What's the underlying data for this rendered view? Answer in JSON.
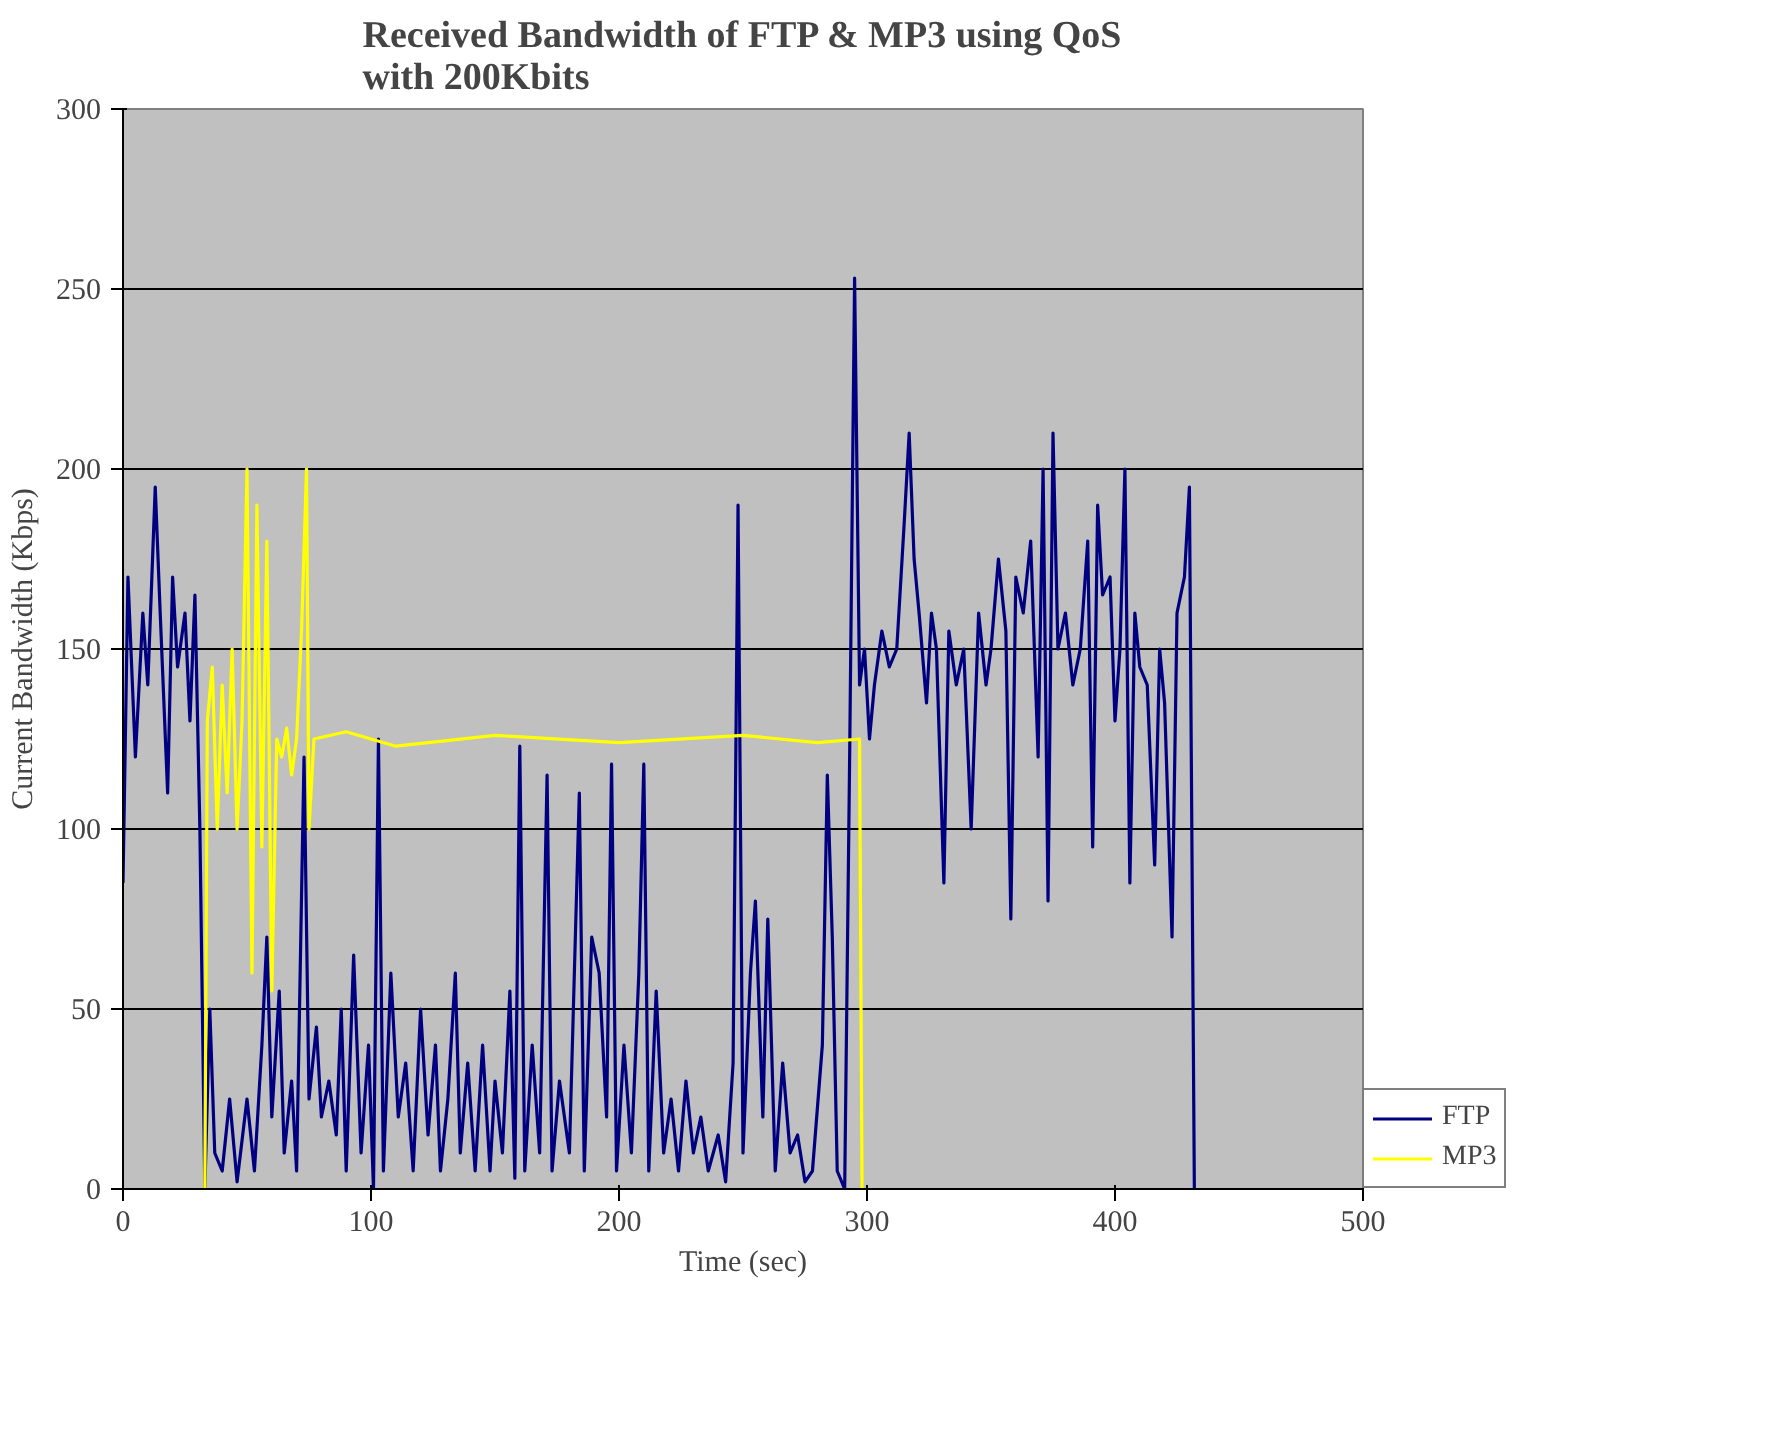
{
  "chart_data": {
    "type": "line",
    "title": "Received Bandwidth of FTP & MP3 using QoS\nwith 200Kbits",
    "xlabel": "Time (sec)",
    "ylabel": "Current Bandwidth (Kbps)",
    "xlim": [
      0,
      500
    ],
    "xticks": [
      0,
      100,
      200,
      300,
      400,
      500
    ],
    "ylim": [
      0,
      300
    ],
    "yticks": [
      0,
      50,
      100,
      150,
      200,
      250,
      300
    ],
    "grid": "y",
    "legend": "right",
    "line_style": "solid",
    "series": [
      {
        "name": "FTP",
        "color": "#000080",
        "x": [
          0,
          2,
          5,
          8,
          10,
          13,
          15,
          18,
          20,
          22,
          25,
          27,
          29,
          31,
          33,
          35,
          37,
          40,
          43,
          46,
          50,
          53,
          56,
          58,
          60,
          63,
          65,
          68,
          70,
          73,
          75,
          78,
          80,
          83,
          86,
          88,
          90,
          93,
          96,
          99,
          101,
          103,
          105,
          108,
          111,
          114,
          117,
          120,
          123,
          126,
          128,
          131,
          134,
          136,
          139,
          142,
          145,
          148,
          150,
          153,
          156,
          158,
          160,
          162,
          165,
          168,
          171,
          173,
          176,
          180,
          184,
          186,
          189,
          192,
          195,
          197,
          199,
          202,
          205,
          208,
          210,
          212,
          215,
          218,
          221,
          224,
          227,
          230,
          233,
          236,
          240,
          243,
          246,
          248,
          250,
          253,
          255,
          258,
          260,
          263,
          266,
          269,
          272,
          275,
          278,
          282,
          284,
          286,
          288,
          291,
          293,
          295,
          297,
          299,
          301,
          303,
          306,
          309,
          312,
          315,
          317,
          319,
          321,
          324,
          326,
          328,
          331,
          333,
          336,
          339,
          342,
          345,
          348,
          350,
          353,
          356,
          358,
          360,
          363,
          366,
          369,
          371,
          373,
          375,
          377,
          380,
          383,
          386,
          389,
          391,
          393,
          395,
          398,
          400,
          402,
          404,
          406,
          408,
          410,
          413,
          416,
          418,
          420,
          423,
          425,
          428,
          430,
          432
        ],
        "values": [
          85,
          170,
          120,
          160,
          140,
          195,
          160,
          110,
          170,
          145,
          160,
          130,
          165,
          100,
          0,
          50,
          10,
          5,
          25,
          2,
          25,
          5,
          40,
          70,
          20,
          55,
          10,
          30,
          5,
          120,
          25,
          45,
          20,
          30,
          15,
          50,
          5,
          65,
          10,
          40,
          0,
          125,
          5,
          60,
          20,
          35,
          5,
          50,
          15,
          40,
          5,
          25,
          60,
          10,
          35,
          5,
          40,
          5,
          30,
          10,
          55,
          3,
          123,
          5,
          40,
          10,
          115,
          5,
          30,
          10,
          110,
          5,
          70,
          60,
          20,
          118,
          5,
          40,
          10,
          60,
          118,
          5,
          55,
          10,
          25,
          5,
          30,
          10,
          20,
          5,
          15,
          2,
          35,
          190,
          10,
          60,
          80,
          20,
          75,
          5,
          35,
          10,
          15,
          2,
          5,
          40,
          115,
          70,
          5,
          0,
          120,
          253,
          140,
          150,
          125,
          140,
          155,
          145,
          150,
          185,
          210,
          175,
          160,
          135,
          160,
          150,
          85,
          155,
          140,
          150,
          100,
          160,
          140,
          150,
          175,
          155,
          75,
          170,
          160,
          180,
          120,
          200,
          80,
          210,
          150,
          160,
          140,
          150,
          180,
          95,
          190,
          165,
          170,
          130,
          150,
          200,
          85,
          160,
          145,
          140,
          90,
          150,
          135,
          70,
          160,
          170,
          195,
          0
        ]
      },
      {
        "name": "MP3",
        "color": "#ffff00",
        "x": [
          33,
          34,
          36,
          38,
          40,
          42,
          44,
          46,
          48,
          50,
          52,
          54,
          56,
          58,
          60,
          62,
          64,
          66,
          68,
          70,
          72,
          74,
          75,
          77,
          90,
          110,
          150,
          200,
          250,
          280,
          297,
          298
        ],
        "values": [
          0,
          130,
          145,
          100,
          140,
          110,
          150,
          100,
          130,
          200,
          60,
          190,
          95,
          180,
          55,
          125,
          120,
          128,
          115,
          125,
          155,
          200,
          100,
          125,
          127,
          123,
          126,
          124,
          126,
          124,
          125,
          0
        ]
      }
    ]
  }
}
